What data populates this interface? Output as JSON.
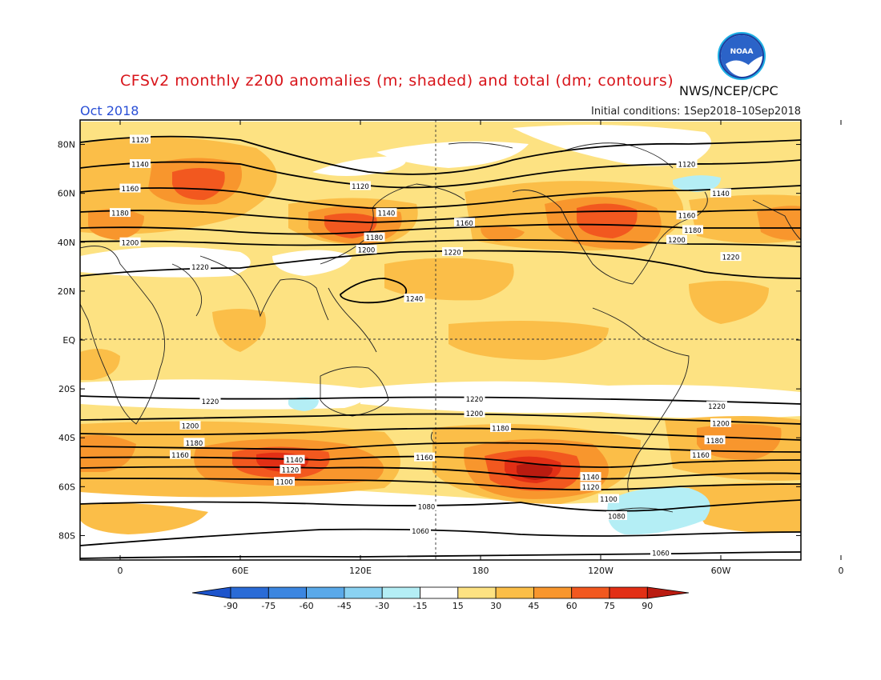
{
  "title": "CFSv2 monthly z200 anomalies (m; shaded) and total (dm; contours)",
  "organization": "NWS/NCEP/CPC",
  "logo_text": "NOAA",
  "valid_month": "Oct 2018",
  "initial_conditions": "Initial conditions: 1Sep2018–10Sep2018",
  "colors": {
    "title": "#d8141a",
    "month": "#2a4fd6",
    "pos15": "#fde282",
    "pos30": "#fbbe48",
    "pos45": "#f8962d",
    "pos60": "#f2581f",
    "pos75": "#e22f15",
    "pos90": "#ba1b10",
    "neg15": "#b4eef5",
    "neg30": "#8ad2f2",
    "neg45": "#5aa9e9",
    "neg60": "#3c86e0",
    "neg75": "#2a6bd6",
    "neg90": "#1d54cc"
  },
  "lat_labels": [
    "80N",
    "60N",
    "40N",
    "20N",
    "EQ",
    "20S",
    "40S",
    "60S",
    "80S"
  ],
  "lon_labels": [
    "0",
    "60E",
    "120E",
    "180",
    "120W",
    "60W",
    "0"
  ],
  "contour_labels": [
    {
      "text": "1120",
      "lon": 10,
      "lat": 82
    },
    {
      "text": "1140",
      "lon": 10,
      "lat": 72
    },
    {
      "text": "1160",
      "lon": 5,
      "lat": 62
    },
    {
      "text": "1180",
      "lon": 0,
      "lat": 52
    },
    {
      "text": "1200",
      "lon": 5,
      "lat": 40
    },
    {
      "text": "1220",
      "lon": 40,
      "lat": 30
    },
    {
      "text": "1120",
      "lon": 120,
      "lat": 63
    },
    {
      "text": "1140",
      "lon": 133,
      "lat": 52
    },
    {
      "text": "1180",
      "lon": 127,
      "lat": 42
    },
    {
      "text": "1200",
      "lon": 123,
      "lat": 37
    },
    {
      "text": "1160",
      "lon": 172,
      "lat": 48
    },
    {
      "text": "1220",
      "lon": 166,
      "lat": 36
    },
    {
      "text": "1240",
      "lon": 147,
      "lat": 17
    },
    {
      "text": "1120",
      "lon": -77,
      "lat": 72
    },
    {
      "text": "1140",
      "lon": -60,
      "lat": 60
    },
    {
      "text": "1160",
      "lon": -77,
      "lat": 51
    },
    {
      "text": "1180",
      "lon": -74,
      "lat": 45
    },
    {
      "text": "1200",
      "lon": -82,
      "lat": 41
    },
    {
      "text": "1220",
      "lon": -55,
      "lat": 34
    },
    {
      "text": "1220",
      "lon": 45,
      "lat": -25
    },
    {
      "text": "1200",
      "lon": 35,
      "lat": -35
    },
    {
      "text": "1180",
      "lon": 37,
      "lat": -42
    },
    {
      "text": "1160",
      "lon": 30,
      "lat": -47
    },
    {
      "text": "1140",
      "lon": 87,
      "lat": -49
    },
    {
      "text": "1120",
      "lon": 85,
      "lat": -53
    },
    {
      "text": "1100",
      "lon": 82,
      "lat": -58
    },
    {
      "text": "1160",
      "lon": 152,
      "lat": -48
    },
    {
      "text": "1220",
      "lon": 177,
      "lat": -24
    },
    {
      "text": "1200",
      "lon": 177,
      "lat": -30
    },
    {
      "text": "1180",
      "lon": -170,
      "lat": -36
    },
    {
      "text": "1140",
      "lon": -125,
      "lat": -56
    },
    {
      "text": "1120",
      "lon": -125,
      "lat": -60
    },
    {
      "text": "1100",
      "lon": -116,
      "lat": -65
    },
    {
      "text": "1080",
      "lon": -112,
      "lat": -72
    },
    {
      "text": "1080",
      "lon": 153,
      "lat": -68
    },
    {
      "text": "1060",
      "lon": 150,
      "lat": -78
    },
    {
      "text": "1060",
      "lon": -90,
      "lat": -87
    },
    {
      "text": "1220",
      "lon": -62,
      "lat": -27
    },
    {
      "text": "1200",
      "lon": -60,
      "lat": -34
    },
    {
      "text": "1180",
      "lon": -63,
      "lat": -41
    },
    {
      "text": "1160",
      "lon": -70,
      "lat": -47
    }
  ],
  "colorbar": {
    "labels": [
      "-90",
      "-75",
      "-60",
      "-45",
      "-30",
      "-15",
      "15",
      "30",
      "45",
      "60",
      "75",
      "90"
    ],
    "units": "m"
  }
}
